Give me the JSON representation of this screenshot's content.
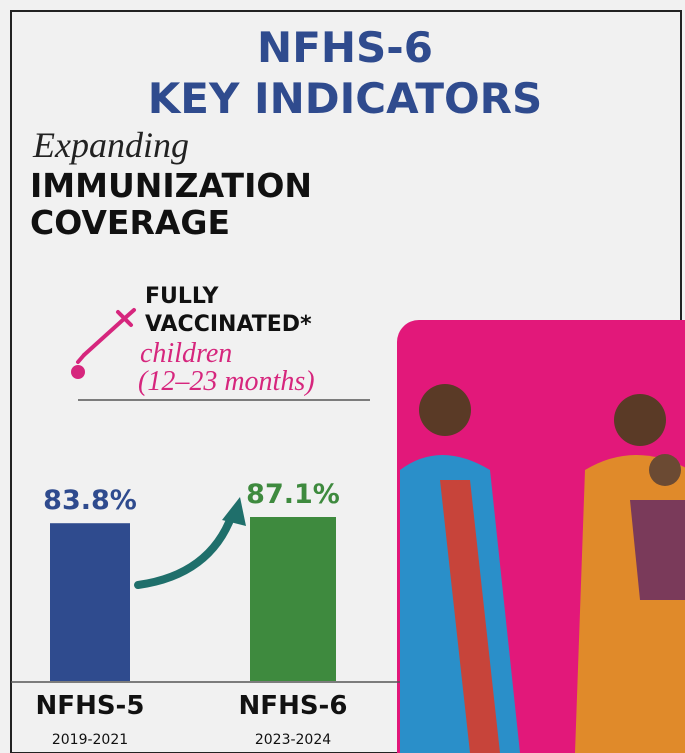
{
  "chart_data": {
    "type": "bar",
    "title": [
      "NFHS-6",
      "KEY INDICATORS"
    ],
    "subtitle": {
      "lead": "Expanding",
      "topic": [
        "IMMUNIZATION",
        "COVERAGE"
      ]
    },
    "indicator": {
      "heading": [
        "FULLY",
        "VACCINATED*"
      ],
      "detail": [
        "children",
        "(12–23 months)"
      ]
    },
    "categories": [
      "NFHS-5",
      "NFHS-6"
    ],
    "category_periods": [
      "2019-2021",
      "2023-2024"
    ],
    "values": [
      83.8,
      87.1
    ],
    "value_labels": [
      "83.8%",
      "87.1%"
    ],
    "colors": [
      "#2f4b8e",
      "#3e8a3e"
    ]
  }
}
